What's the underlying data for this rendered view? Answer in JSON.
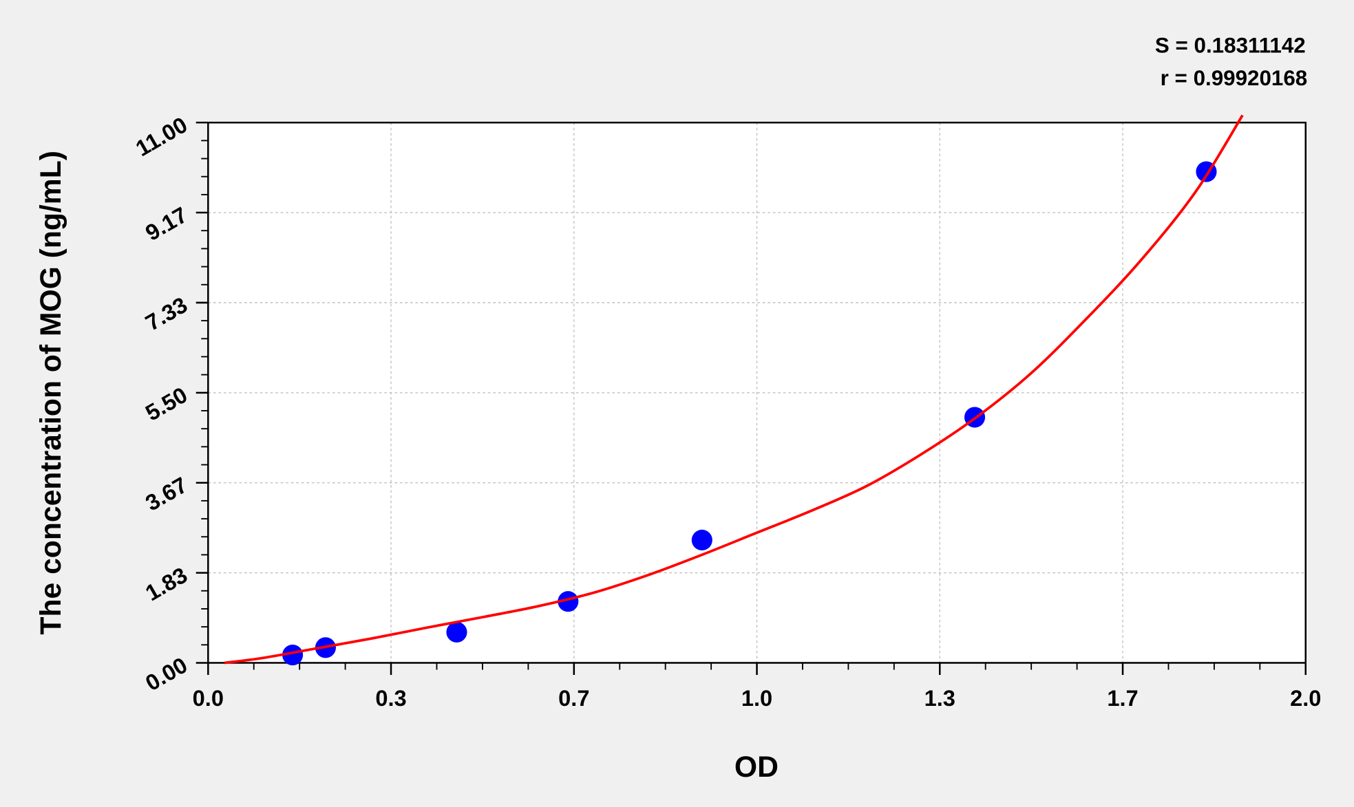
{
  "chart_data": {
    "type": "scatter",
    "xlabel": "OD",
    "ylabel": "The concentration of MOG (ng/mL)",
    "xlim": [
      0,
      2
    ],
    "ylim": [
      0,
      11
    ],
    "x_ticks": [
      0,
      0.3333,
      0.6667,
      1.0,
      1.3333,
      1.6667,
      2.0
    ],
    "x_tick_labels": [
      "0.0",
      "0.3",
      "0.7",
      "1.0",
      "1.3",
      "1.7",
      "2.0"
    ],
    "y_ticks": [
      0,
      1.8333,
      3.6667,
      5.5,
      7.3333,
      9.1667,
      11.0
    ],
    "y_tick_labels": [
      "0.00",
      "1.83",
      "3.67",
      "5.50",
      "7.33",
      "9.17",
      "11.00"
    ],
    "grid": true,
    "annotations": [
      "S = 0.18311142",
      "r = 0.99920168"
    ],
    "points": {
      "x": [
        0.154,
        0.214,
        0.453,
        0.656,
        0.9,
        1.397,
        1.819
      ],
      "y": [
        0.16,
        0.31,
        0.625,
        1.25,
        2.5,
        5.0,
        10.0
      ],
      "color": "#0000ff"
    },
    "fit_curve": {
      "x": [
        0.03,
        0.1,
        0.2,
        0.3,
        0.4,
        0.5,
        0.6,
        0.7,
        0.8,
        0.9,
        1.0,
        1.1,
        1.2,
        1.3,
        1.4,
        1.5,
        1.6,
        1.7,
        1.8,
        1.885
      ],
      "y": [
        0.0,
        0.1,
        0.3,
        0.5,
        0.72,
        0.93,
        1.15,
        1.42,
        1.78,
        2.2,
        2.65,
        3.1,
        3.6,
        4.25,
        5.0,
        5.9,
        7.0,
        8.2,
        9.6,
        11.15
      ],
      "color": "#ff0000"
    }
  }
}
